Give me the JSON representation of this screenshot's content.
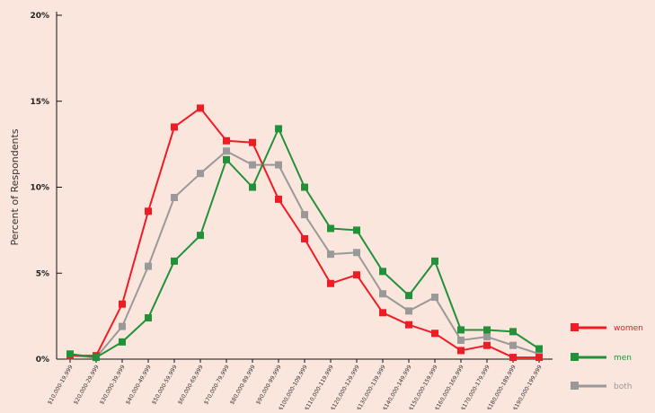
{
  "colors": {
    "background": "#fbe6dd",
    "axis": "#111111",
    "women": "#ee1c25",
    "men": "#22913a",
    "both": "#999999"
  },
  "chart_data": {
    "type": "line",
    "title": "",
    "xlabel": "",
    "ylabel": "Percent of Respondents",
    "ylim": [
      0,
      20
    ],
    "yticks": [
      0,
      5,
      10,
      15,
      20
    ],
    "ytick_labels": [
      "0%",
      "5%",
      "10%",
      "15%",
      "20%"
    ],
    "grid": false,
    "legend_position": "bottom-right",
    "categories": [
      "$10,000-19,999",
      "$20,000-29,999",
      "$30,000-39,999",
      "$40,000-49,999",
      "$50,000-59,999",
      "$60,000-69,999",
      "$70,000-79,999",
      "$80,000-89,999",
      "$90,000-99,999",
      "$100,000-109,999",
      "$110,000-119,999",
      "$120,000-129,999",
      "$130,000-139,999",
      "$140,000-149,999",
      "$150,000-159,999",
      "$160,000-169,999",
      "$170,000-179,999",
      "$180,000-189,999",
      "$190,000-199,999"
    ],
    "series": [
      {
        "name": "women",
        "color": "#ee1c25",
        "values": [
          0.2,
          0.2,
          3.2,
          8.6,
          13.5,
          14.6,
          12.7,
          12.6,
          9.3,
          7.0,
          4.4,
          4.9,
          2.7,
          2.0,
          1.5,
          0.5,
          0.8,
          0.1,
          0.1
        ]
      },
      {
        "name": "men",
        "color": "#22913a",
        "values": [
          0.3,
          0.1,
          1.0,
          2.4,
          5.7,
          7.2,
          11.6,
          10.0,
          13.4,
          10.0,
          7.6,
          7.5,
          5.1,
          3.7,
          5.7,
          1.7,
          1.7,
          1.6,
          0.6
        ]
      },
      {
        "name": "both",
        "color": "#999999",
        "values": [
          0.2,
          0.1,
          1.9,
          5.4,
          9.4,
          10.8,
          12.1,
          11.3,
          11.3,
          8.4,
          6.1,
          6.2,
          3.8,
          2.8,
          3.6,
          1.1,
          1.3,
          0.8,
          0.3
        ]
      }
    ]
  }
}
